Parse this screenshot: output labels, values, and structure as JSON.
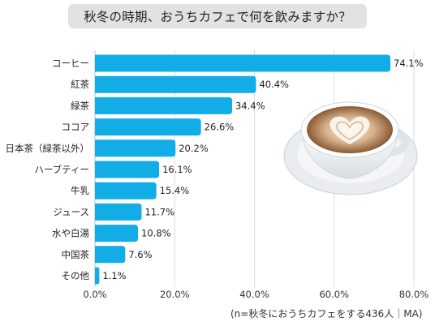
{
  "chart_data": {
    "type": "bar",
    "orientation": "horizontal",
    "title": "秋冬の時期、おうちカフェで何を飲みますか？",
    "categories": [
      "コーヒー",
      "紅茶",
      "緑茶",
      "ココア",
      "日本茶（緑茶以外）",
      "ハーブティー",
      "牛乳",
      "ジュース",
      "水や白湯",
      "中国茶",
      "その他"
    ],
    "values": [
      74.1,
      40.4,
      34.4,
      26.6,
      20.2,
      16.1,
      15.4,
      11.7,
      10.8,
      7.6,
      1.1
    ],
    "value_labels": [
      "74.1%",
      "40.4%",
      "34.4%",
      "26.6%",
      "20.2%",
      "16.1%",
      "15.4%",
      "11.7%",
      "10.8%",
      "7.6%",
      "1.1%"
    ],
    "xlim": [
      0,
      80
    ],
    "xticks": [
      0,
      20,
      40,
      60,
      80
    ],
    "xtick_labels": [
      "0.0%",
      "20.0%",
      "40.0%",
      "60.0%",
      "80.0%"
    ],
    "grid": "vertical",
    "bar_color": "#12ade6",
    "note": "(n=秋冬におうちカフェをする436人｜MA)"
  },
  "illustration": "latte-art-cup-icon"
}
